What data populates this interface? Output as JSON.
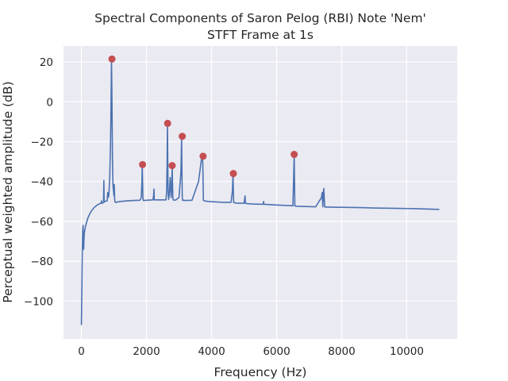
{
  "chart_data": {
    "type": "line",
    "title_line1": "Spectral Components of Saron Pelog (RBI) Note 'Nem'",
    "title_line2": "STFT Frame at 1s",
    "xlabel": "Frequency (Hz)",
    "ylabel": "Perceptual weighted amplitude (dB)",
    "xlim": [
      -550,
      11550
    ],
    "ylim": [
      -119,
      28
    ],
    "x_ticks": [
      0,
      2000,
      4000,
      6000,
      8000,
      10000
    ],
    "x_tick_labels": [
      "0",
      "2000",
      "4000",
      "6000",
      "8000",
      "10000"
    ],
    "y_ticks": [
      20,
      0,
      -20,
      -40,
      -60,
      -80,
      -100
    ],
    "y_tick_labels": [
      "20",
      "0",
      "−20",
      "−40",
      "−60",
      "−80",
      "−100"
    ],
    "grid": true,
    "background": "#eaeaf2",
    "line_color": "#4c72b0",
    "peak_color": "#c44e52",
    "series": [
      {
        "x": [
          0,
          10,
          20,
          30,
          40,
          50,
          60,
          70,
          80,
          90,
          100,
          110,
          130,
          150,
          175,
          200,
          230,
          260,
          300,
          340,
          380,
          420,
          460,
          500,
          540,
          580,
          610,
          620,
          630,
          645,
          660,
          680,
          690,
          700,
          710,
          730,
          760,
          790,
          810,
          820,
          830,
          840,
          850,
          870,
          890,
          905,
          915,
          925,
          935,
          945,
          955,
          965,
          975,
          990,
          1000,
          1010,
          1020,
          1030,
          1040,
          1060,
          1100,
          1200,
          1400,
          1600,
          1800,
          1840,
          1860,
          1870,
          1880,
          1890,
          1900,
          1920,
          2000,
          2100,
          2200,
          2220,
          2230,
          2240,
          2260,
          2400,
          2550,
          2600,
          2620,
          2635,
          2645,
          2655,
          2665,
          2680,
          2700,
          2730,
          2760,
          2780,
          2790,
          2800,
          2810,
          2820,
          2840,
          2900,
          3000,
          3060,
          3080,
          3090,
          3100,
          3110,
          3120,
          3140,
          3200,
          3400,
          3600,
          3680,
          3710,
          3730,
          3740,
          3750,
          3770,
          3800,
          3900,
          4100,
          4300,
          4500,
          4600,
          4640,
          4660,
          4670,
          4680,
          4700,
          4750,
          4900,
          5000,
          5030,
          5040,
          5060,
          5100,
          5300,
          5500,
          5590,
          5600,
          5610,
          5700,
          6000,
          6300,
          6450,
          6500,
          6520,
          6540,
          6550,
          6560,
          6580,
          6600,
          6800,
          7000,
          7200,
          7380,
          7400,
          7410,
          7420,
          7440,
          7450,
          7460,
          7480,
          7500,
          7800,
          8200,
          8600,
          9000,
          9400,
          9800,
          10200,
          10600,
          11000
        ],
        "y": [
          -112,
          -100,
          -85,
          -72,
          -65,
          -62,
          -66,
          -74,
          -69,
          -66,
          -64.8,
          -63.8,
          -62.3,
          -61,
          -59.6,
          -58.3,
          -57.2,
          -56.2,
          -55,
          -54.1,
          -53.3,
          -52.7,
          -52.1,
          -51.7,
          -51.3,
          -51,
          -50.9,
          -49.7,
          -50.8,
          -50.9,
          -50.7,
          -50.4,
          -39.5,
          -50.3,
          -50.2,
          -50,
          -49.8,
          -49.7,
          -45.5,
          -48,
          -46,
          -47.5,
          -45,
          -38,
          -25,
          -10,
          5,
          21.5,
          8,
          -10,
          -28,
          -38,
          -43,
          -45,
          -47,
          -41.5,
          -48,
          -50,
          -50.4,
          -50.5,
          -50.3,
          -50,
          -49.7,
          -49.5,
          -49.4,
          -48,
          -40,
          -31.5,
          -40,
          -48,
          -49.5,
          -49.5,
          -49.4,
          -49.3,
          -49.2,
          -47,
          -43.8,
          -49.2,
          -49.2,
          -49.2,
          -49.2,
          -49.2,
          -45,
          -30,
          -10.8,
          -30,
          -45,
          -49,
          -47,
          -38,
          -48,
          -40,
          -32,
          -40,
          -48,
          -49.2,
          -49.3,
          -49.3,
          -48,
          -35,
          -17.3,
          -35,
          -48,
          -49.4,
          -49.4,
          -49.4,
          -49.5,
          -49.4,
          -40,
          -30,
          -27.3,
          -30,
          -40,
          -49.5,
          -49.6,
          -49.8,
          -50,
          -50.2,
          -50.4,
          -50.5,
          -50.4,
          -45,
          -36,
          -45,
          -50.5,
          -50.6,
          -50.8,
          -50.9,
          -50.9,
          -47.2,
          -50.9,
          -51,
          -51.1,
          -51.3,
          -51.4,
          -51.4,
          -50,
          -51.4,
          -51.5,
          -51.8,
          -52,
          -52.1,
          -52.2,
          -40,
          -26.4,
          -40,
          -52.2,
          -52.3,
          -52.4,
          -52.5,
          -52.6,
          -52.7,
          -48,
          -45.5,
          -49,
          -52.7,
          -45,
          -43.5,
          -47,
          -52.8,
          -52.8,
          -52.9,
          -53,
          -53.1,
          -53.3,
          -53.4,
          -53.5,
          -53.6,
          -53.8,
          -54
        ]
      }
    ],
    "peaks": {
      "x": [
        940,
        1880,
        2650,
        2790,
        3100,
        3740,
        4670,
        6540
      ],
      "y": [
        21.5,
        -31.5,
        -10.8,
        -32,
        -17.3,
        -27.3,
        -36,
        -26.4
      ]
    }
  }
}
